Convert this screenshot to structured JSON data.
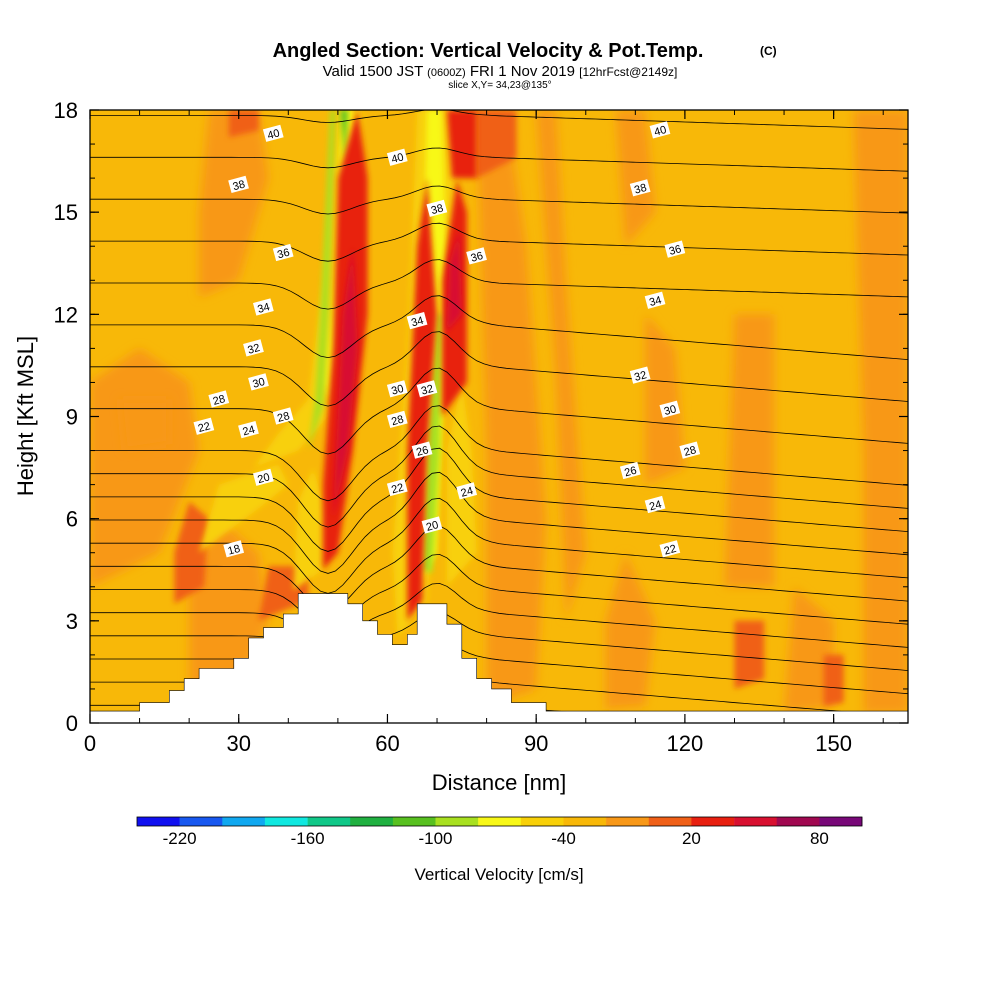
{
  "title": "Angled Section: Vertical Velocity & Pot.Temp.",
  "title_mark": "(C)",
  "subtitle_parts": {
    "a": "Valid 1500 JST",
    "b": "(0600Z)",
    "c": "FRI 1 Nov 2019",
    "d": "[12hrFcst@2149z]"
  },
  "slice_label": "slice X,Y= 34,23@135°",
  "colorbar_label": "Vertical Velocity [cm/s]",
  "colorbar_colors": [
    "#1010f0",
    "#1858f0",
    "#10a8f0",
    "#10e8e0",
    "#10c888",
    "#20b040",
    "#58c020",
    "#a8e020",
    "#f8f818",
    "#f8d008",
    "#f8b808",
    "#f89818",
    "#f06018",
    "#e82010",
    "#d81030",
    "#a00850",
    "#780878"
  ],
  "colors": {
    "background": "#f8b808",
    "terrain": "#ffffff",
    "contour": "#000000"
  },
  "chart_data": {
    "type": "contour",
    "xlabel": "Distance [nm]",
    "ylabel": "Height [Kft MSL]",
    "xlim": [
      0,
      165
    ],
    "ylim": [
      0,
      18
    ],
    "x_ticks": [
      0,
      30,
      60,
      90,
      120,
      150
    ],
    "y_ticks": [
      0,
      3,
      6,
      9,
      12,
      15,
      18
    ],
    "colorbar_ticks": [
      -220,
      -160,
      -100,
      -40,
      20,
      80
    ],
    "colorbar_range": [
      -240,
      100
    ],
    "terrain": [
      [
        0,
        0.35
      ],
      [
        10,
        0.35
      ],
      [
        10,
        0.6
      ],
      [
        16,
        0.6
      ],
      [
        16,
        0.95
      ],
      [
        19,
        0.95
      ],
      [
        19,
        1.3
      ],
      [
        22,
        1.3
      ],
      [
        22,
        1.6
      ],
      [
        29,
        1.6
      ],
      [
        29,
        1.9
      ],
      [
        32,
        1.9
      ],
      [
        32,
        2.5
      ],
      [
        35,
        2.5
      ],
      [
        35,
        2.8
      ],
      [
        39,
        2.8
      ],
      [
        39,
        3.2
      ],
      [
        42,
        3.2
      ],
      [
        42,
        3.8
      ],
      [
        52,
        3.8
      ],
      [
        52,
        3.5
      ],
      [
        55,
        3.5
      ],
      [
        55,
        3.0
      ],
      [
        58,
        3.0
      ],
      [
        58,
        2.6
      ],
      [
        61,
        2.6
      ],
      [
        61,
        2.3
      ],
      [
        64,
        2.3
      ],
      [
        64,
        2.6
      ],
      [
        66,
        2.6
      ],
      [
        66,
        3.5
      ],
      [
        72,
        3.5
      ],
      [
        72,
        2.9
      ],
      [
        75,
        2.9
      ],
      [
        75,
        1.9
      ],
      [
        78,
        1.9
      ],
      [
        78,
        1.3
      ],
      [
        81,
        1.3
      ],
      [
        81,
        1.0
      ],
      [
        85,
        1.0
      ],
      [
        85,
        0.6
      ],
      [
        92,
        0.6
      ],
      [
        92,
        0.35
      ],
      [
        165,
        0.35
      ]
    ],
    "contour_levels": [
      18,
      20,
      22,
      24,
      26,
      28,
      30,
      32,
      34,
      36,
      38,
      40
    ],
    "contour_labels": [
      {
        "v": "40",
        "x": 37,
        "y": 17.3
      },
      {
        "v": "40",
        "x": 62,
        "y": 16.6
      },
      {
        "v": "40",
        "x": 115,
        "y": 17.4
      },
      {
        "v": "38",
        "x": 30,
        "y": 15.8
      },
      {
        "v": "38",
        "x": 70,
        "y": 15.1
      },
      {
        "v": "38",
        "x": 111,
        "y": 15.7
      },
      {
        "v": "36",
        "x": 39,
        "y": 13.8
      },
      {
        "v": "36",
        "x": 78,
        "y": 13.7
      },
      {
        "v": "36",
        "x": 118,
        "y": 13.9
      },
      {
        "v": "34",
        "x": 35,
        "y": 12.2
      },
      {
        "v": "34",
        "x": 66,
        "y": 11.8
      },
      {
        "v": "34",
        "x": 114,
        "y": 12.4
      },
      {
        "v": "32",
        "x": 33,
        "y": 11.0
      },
      {
        "v": "32",
        "x": 68,
        "y": 9.8
      },
      {
        "v": "32",
        "x": 111,
        "y": 10.2
      },
      {
        "v": "30",
        "x": 34,
        "y": 10.0
      },
      {
        "v": "30",
        "x": 62,
        "y": 9.8
      },
      {
        "v": "30",
        "x": 117,
        "y": 9.2
      },
      {
        "v": "28",
        "x": 26,
        "y": 9.5
      },
      {
        "v": "28",
        "x": 39,
        "y": 9.0
      },
      {
        "v": "28",
        "x": 62,
        "y": 8.9
      },
      {
        "v": "28",
        "x": 121,
        "y": 8.0
      },
      {
        "v": "26",
        "x": 67,
        "y": 8.0
      },
      {
        "v": "26",
        "x": 109,
        "y": 7.4
      },
      {
        "v": "24",
        "x": 32,
        "y": 8.6
      },
      {
        "v": "24",
        "x": 76,
        "y": 6.8
      },
      {
        "v": "24",
        "x": 114,
        "y": 6.4
      },
      {
        "v": "22",
        "x": 23,
        "y": 8.7
      },
      {
        "v": "22",
        "x": 62,
        "y": 6.9
      },
      {
        "v": "22",
        "x": 117,
        "y": 5.1
      },
      {
        "v": "20",
        "x": 35,
        "y": 7.2
      },
      {
        "v": "20",
        "x": 69,
        "y": 5.8
      },
      {
        "v": "18",
        "x": 29,
        "y": 5.1
      }
    ]
  }
}
